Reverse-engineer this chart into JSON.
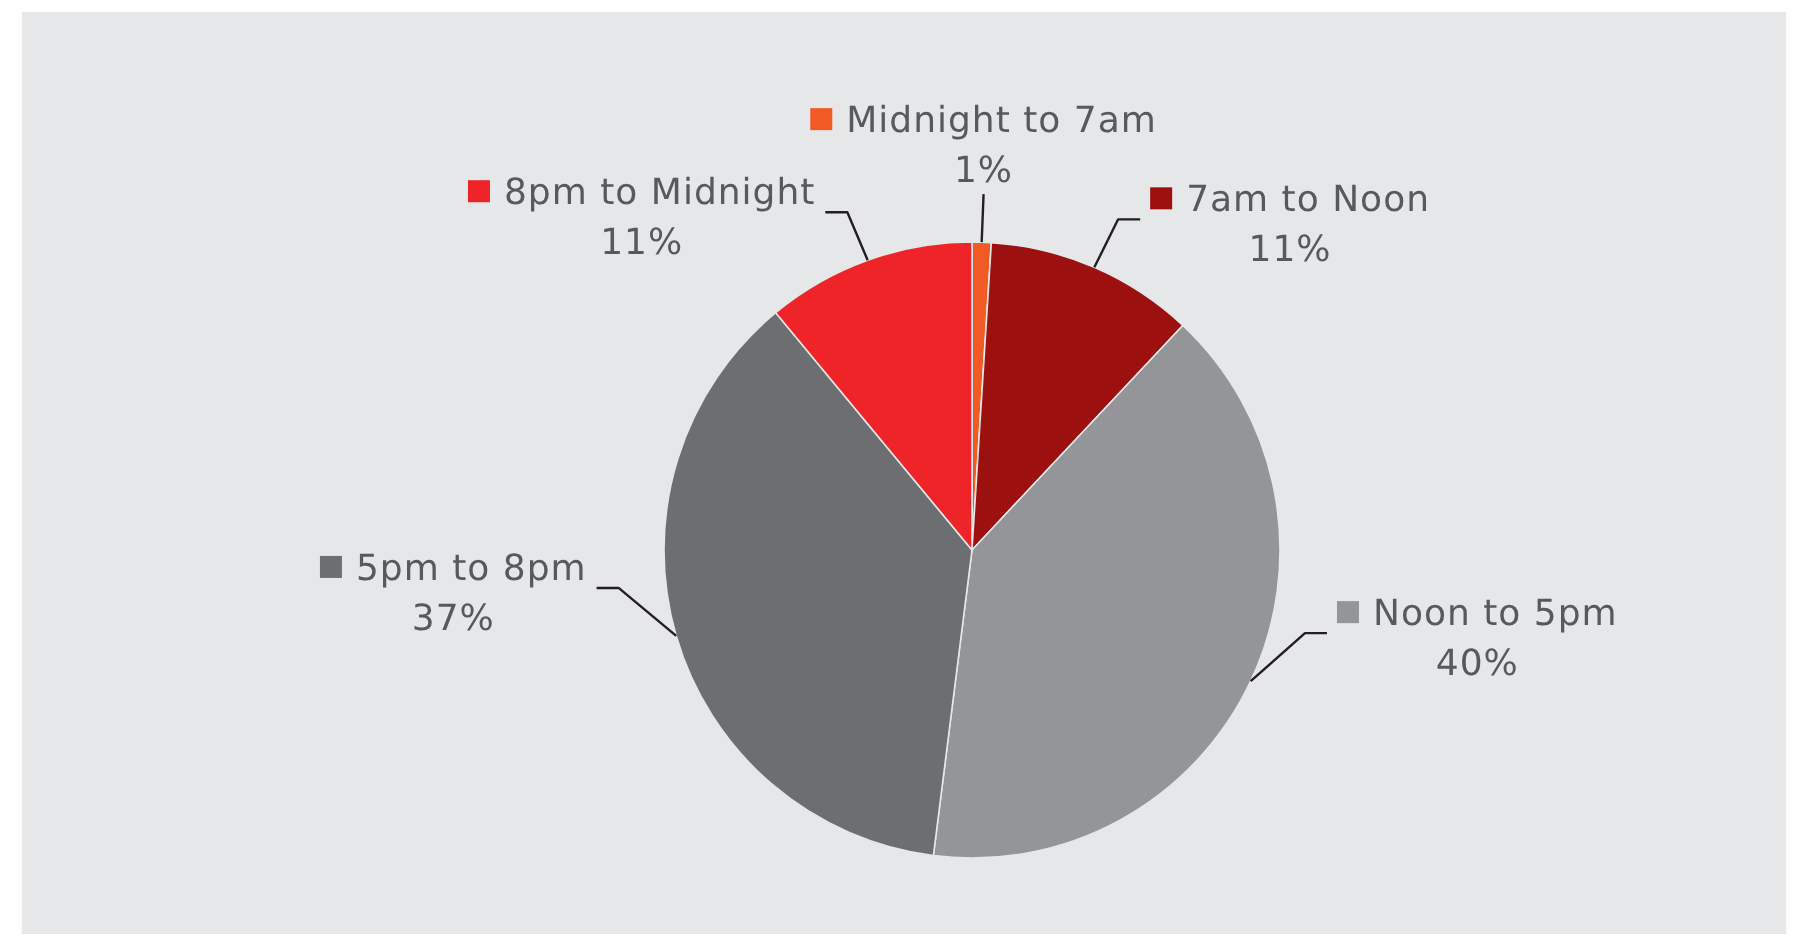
{
  "chart_data": {
    "type": "pie",
    "categories": [
      "Midnight to 7am",
      "7am to Noon",
      "Noon to 5pm",
      "5pm to 8pm",
      "8pm to Midnight"
    ],
    "values": [
      1,
      11,
      40,
      37,
      11
    ],
    "colors": [
      "#f15a24",
      "#9d1010",
      "#939598",
      "#6d6e71",
      "#ee2428"
    ],
    "value_labels": [
      "1%",
      "11%",
      "40%",
      "37%",
      "11%"
    ],
    "legend": "top"
  }
}
